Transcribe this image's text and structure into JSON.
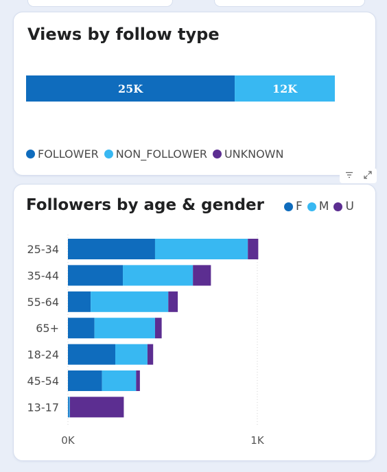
{
  "colors": {
    "f": "#0F6CBD",
    "m": "#38B8F2",
    "u": "#5C2E91"
  },
  "toolbar": {
    "filter_icon": "filter-icon",
    "expand_icon": "expand-icon"
  },
  "chart_data": [
    {
      "type": "bar",
      "orientation": "horizontal-stacked",
      "title": "Views by follow type",
      "legend_placement": "bottom-left",
      "series": [
        {
          "name": "FOLLOWER",
          "values": [
            25000
          ],
          "label": "25K",
          "color": "#0F6CBD"
        },
        {
          "name": "NON_FOLLOWER",
          "values": [
            12000
          ],
          "label": "12K",
          "color": "#38B8F2"
        },
        {
          "name": "UNKNOWN",
          "values": [
            0
          ],
          "label": "",
          "color": "#5C2E91"
        }
      ],
      "xlim": [
        0,
        37000
      ],
      "grid": false
    },
    {
      "type": "bar",
      "orientation": "horizontal-stacked",
      "title": "Followers by age & gender",
      "legend_placement": "top-right",
      "categories": [
        "25-34",
        "35-44",
        "55-64",
        "65+",
        "18-24",
        "45-54",
        "13-17"
      ],
      "series": [
        {
          "name": "F",
          "values": [
            460,
            290,
            120,
            140,
            250,
            180,
            5
          ],
          "color": "#0F6CBD"
        },
        {
          "name": "M",
          "values": [
            490,
            370,
            410,
            320,
            170,
            180,
            5
          ],
          "color": "#38B8F2"
        },
        {
          "name": "U",
          "values": [
            55,
            95,
            50,
            35,
            30,
            20,
            285
          ],
          "color": "#5C2E91"
        }
      ],
      "xticks": [
        "0K",
        "1K"
      ],
      "xlim": [
        0,
        1000
      ],
      "grid": true
    }
  ]
}
